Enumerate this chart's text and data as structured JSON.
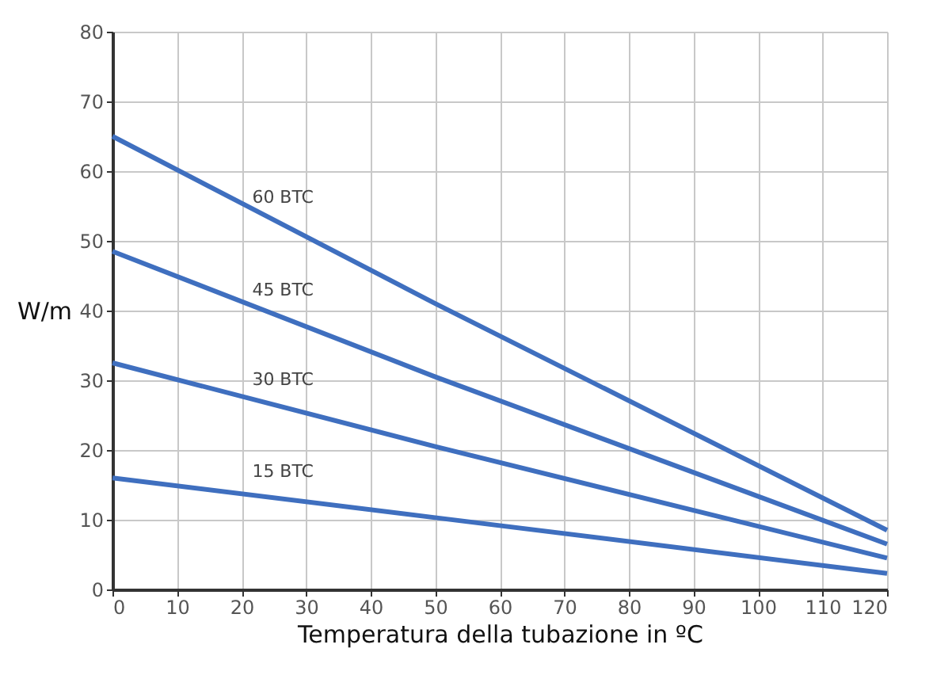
{
  "chart_data": {
    "type": "line",
    "xlabel": "Temperatura della tubazione in ºC",
    "ylabel": "W/m",
    "x": [
      0,
      50,
      120
    ],
    "series": [
      {
        "name": "60 BTC",
        "color": "#3f6fbf",
        "values": [
          65,
          41,
          8.5
        ]
      },
      {
        "name": "45 BTC",
        "color": "#3f6fbf",
        "values": [
          48.5,
          30.5,
          6.5
        ]
      },
      {
        "name": "30 BTC",
        "color": "#3f6fbf",
        "values": [
          32.5,
          20.5,
          4.5
        ]
      },
      {
        "name": "15 BTC",
        "color": "#3f6fbf",
        "values": [
          16,
          10.3,
          2.3
        ]
      }
    ],
    "xlim": [
      0,
      120
    ],
    "xticks": [
      0,
      10,
      20,
      30,
      40,
      50,
      60,
      70,
      80,
      90,
      100,
      110,
      120
    ],
    "ylim": [
      0,
      80
    ],
    "yticks": [
      0,
      10,
      20,
      30,
      40,
      50,
      60,
      70,
      80
    ],
    "grid": true,
    "legend": false,
    "marker": "none",
    "line_style": "solid"
  }
}
